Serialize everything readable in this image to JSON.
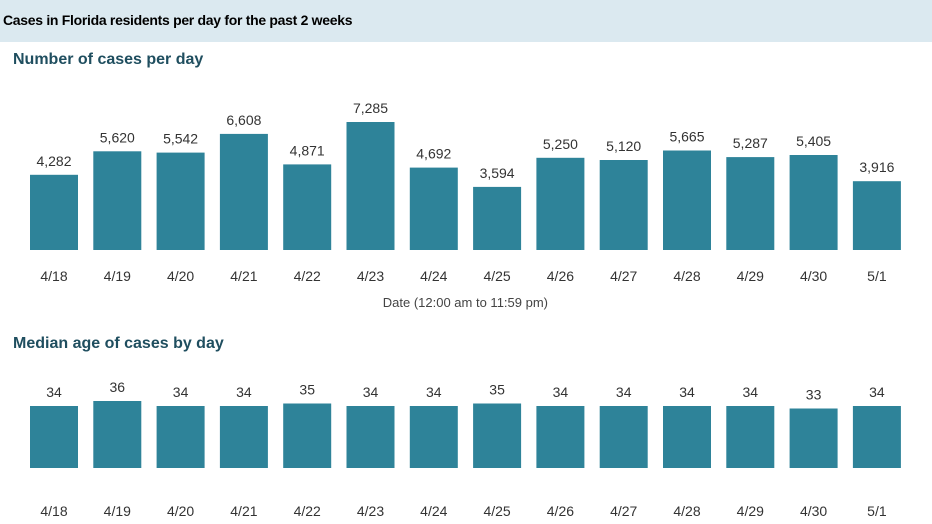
{
  "header": {
    "title": "Cases in Florida residents per day for the past 2 weeks"
  },
  "colors": {
    "bar": "#2e8399",
    "header_bg": "#dbe9f0",
    "section_title": "#1f4e5f"
  },
  "chart_data": [
    {
      "type": "bar",
      "title": "Number of cases per day",
      "xlabel": "Date (12:00 am to 11:59 pm)",
      "ylabel": "",
      "ylim": [
        0,
        7800
      ],
      "categories": [
        "4/18",
        "4/19",
        "4/20",
        "4/21",
        "4/22",
        "4/23",
        "4/24",
        "4/25",
        "4/26",
        "4/27",
        "4/28",
        "4/29",
        "4/30",
        "5/1"
      ],
      "values": [
        4282,
        5620,
        5542,
        6608,
        4871,
        7285,
        4692,
        3594,
        5250,
        5120,
        5665,
        5287,
        5405,
        3916
      ],
      "value_labels": [
        "4,282",
        "5,620",
        "5,542",
        "6,608",
        "4,871",
        "7,285",
        "4,692",
        "3,594",
        "5,250",
        "5,120",
        "5,665",
        "5,287",
        "5,405",
        "3,916"
      ]
    },
    {
      "type": "bar",
      "title": "Median age of cases by day",
      "xlabel": "",
      "ylabel": "",
      "ylim": [
        0,
        36
      ],
      "categories": [
        "4/18",
        "4/19",
        "4/20",
        "4/21",
        "4/22",
        "4/23",
        "4/24",
        "4/25",
        "4/26",
        "4/27",
        "4/28",
        "4/29",
        "4/30",
        "5/1"
      ],
      "values": [
        34,
        36,
        34,
        34,
        35,
        34,
        34,
        35,
        34,
        34,
        34,
        34,
        33,
        34
      ],
      "value_labels": [
        "34",
        "36",
        "34",
        "34",
        "35",
        "34",
        "34",
        "35",
        "34",
        "34",
        "34",
        "34",
        "33",
        "34"
      ]
    }
  ]
}
